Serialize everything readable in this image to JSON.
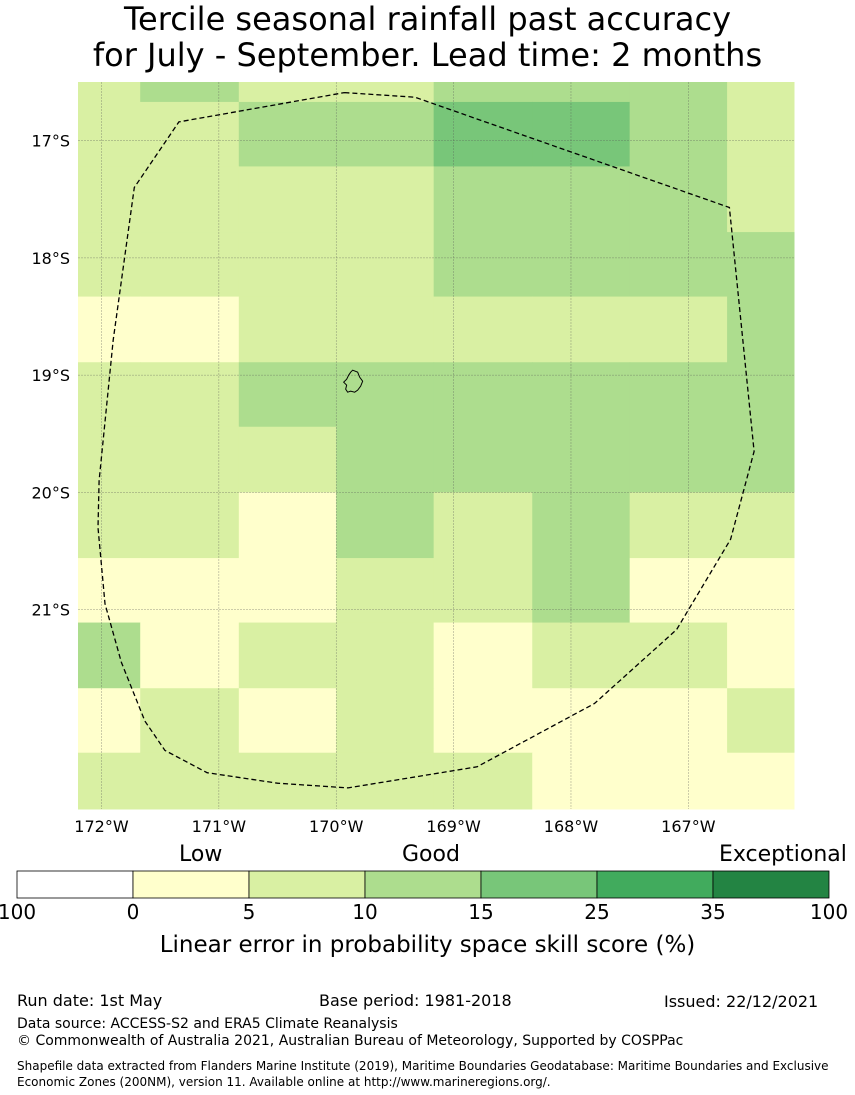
{
  "title": {
    "line1": "Tercile seasonal rainfall past accuracy",
    "line2": "for July - September. Lead time: 2 months"
  },
  "map": {
    "lon_range": [
      -172.2,
      -166.1
    ],
    "lat_range": [
      -22.7,
      -16.5
    ],
    "lon_ticks": [
      {
        "value": -172,
        "label": "172°W"
      },
      {
        "value": -171,
        "label": "171°W"
      },
      {
        "value": -170,
        "label": "170°W"
      },
      {
        "value": -169,
        "label": "169°W"
      },
      {
        "value": -168,
        "label": "168°W"
      },
      {
        "value": -167,
        "label": "167°W"
      }
    ],
    "lat_ticks": [
      {
        "value": -17,
        "label": "17°S"
      },
      {
        "value": -18,
        "label": "18°S"
      },
      {
        "value": -19,
        "label": "19°S"
      },
      {
        "value": -20,
        "label": "20°S"
      },
      {
        "value": -21,
        "label": "21°S"
      }
    ],
    "grid_lines": true,
    "cell_colors": [
      "#ffffff",
      "#ffffcc",
      "#d9f0a3",
      "#addd8e",
      "#78c679",
      "#41ab5d",
      "#238443"
    ],
    "col_edges": [
      -172.2,
      -171.67,
      -170.83,
      -170.0,
      -169.17,
      -168.33,
      -167.5,
      -166.67,
      -166.1
    ],
    "row_edges": [
      -16.5,
      -16.67,
      -17.22,
      -17.78,
      -18.33,
      -18.89,
      -19.44,
      -20.0,
      -20.56,
      -21.11,
      -21.67,
      -22.22,
      -22.7
    ],
    "cell_grid": [
      [
        2,
        3,
        2,
        2,
        3,
        3,
        3,
        2
      ],
      [
        2,
        2,
        3,
        3,
        4,
        4,
        3,
        2
      ],
      [
        2,
        2,
        2,
        2,
        3,
        3,
        3,
        2
      ],
      [
        2,
        2,
        2,
        2,
        3,
        3,
        3,
        3
      ],
      [
        1,
        1,
        2,
        2,
        2,
        2,
        2,
        3
      ],
      [
        2,
        2,
        3,
        3,
        3,
        3,
        3,
        3
      ],
      [
        2,
        2,
        2,
        3,
        3,
        3,
        3,
        3
      ],
      [
        2,
        2,
        1,
        3,
        2,
        3,
        2,
        2
      ],
      [
        1,
        1,
        1,
        2,
        2,
        3,
        1,
        1
      ],
      [
        3,
        1,
        2,
        2,
        1,
        2,
        2,
        1
      ],
      [
        1,
        2,
        1,
        2,
        1,
        1,
        1,
        2
      ],
      [
        2,
        2,
        2,
        2,
        2,
        1,
        1,
        1
      ]
    ],
    "island_location": [
      -169.86,
      -19.06
    ],
    "eez_boundary": [
      [
        -169.93,
        -16.59
      ],
      [
        -169.33,
        -16.63
      ],
      [
        -166.65,
        -17.57
      ],
      [
        -166.44,
        -19.65
      ],
      [
        -166.64,
        -20.4
      ],
      [
        -167.1,
        -21.17
      ],
      [
        -167.8,
        -21.8
      ],
      [
        -168.8,
        -22.34
      ],
      [
        -169.9,
        -22.52
      ],
      [
        -170.5,
        -22.48
      ],
      [
        -171.1,
        -22.39
      ],
      [
        -171.46,
        -22.2
      ],
      [
        -171.63,
        -21.95
      ],
      [
        -171.83,
        -21.45
      ],
      [
        -171.97,
        -20.95
      ],
      [
        -172.03,
        -20.3
      ],
      [
        -172.02,
        -19.9
      ],
      [
        -171.9,
        -18.7
      ],
      [
        -171.72,
        -17.4
      ],
      [
        -171.34,
        -16.84
      ],
      [
        -169.93,
        -16.59
      ]
    ]
  },
  "legend": {
    "category_labels": [
      "Low",
      "Good",
      "Exceptional"
    ],
    "colors": [
      "#ffffff",
      "#ffffcc",
      "#d9f0a3",
      "#addd8e",
      "#78c679",
      "#41ab5d",
      "#238443"
    ],
    "ticks": [
      "100",
      "0",
      "5",
      "10",
      "15",
      "25",
      "35",
      "100"
    ],
    "title": "Linear error in probability space skill score (%)"
  },
  "footer": {
    "run_date": "Run date: 1st May",
    "base_period": "Base period: 1981-2018",
    "issued": "Issued: 22/12/2021",
    "data_source": "Data source: ACCESS-S2 and ERA5 Climate Reanalysis",
    "copyright": "© Commonwealth of Australia 2021, Australian Bureau of Meteorology, Supported by COSPPac",
    "shapefile_line1": "Shapefile data extracted from Flanders Marine Institute (2019), Maritime Boundaries Geodatabase: Maritime Boundaries and Exclusive",
    "shapefile_line2": "Economic Zones (200NM), version 11. Available online at http://www.marineregions.org/."
  }
}
